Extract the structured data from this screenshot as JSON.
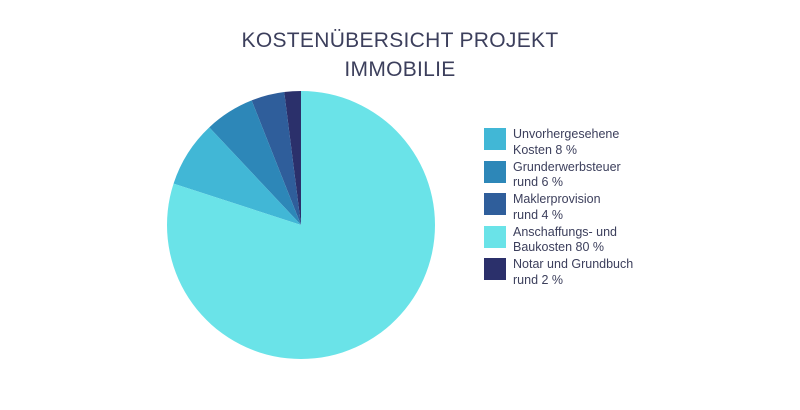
{
  "chart_data": {
    "type": "pie",
    "title_lines": [
      "KOSTENÜBERSICHT PROJEKT",
      "IMMOBILIE"
    ],
    "start_angle_deg": 0,
    "direction": "counterclockwise",
    "slices": [
      {
        "label": "Unvorhergesehene\nKosten 8 %",
        "value": 8,
        "color": "#41b7d6"
      },
      {
        "label": "Grunderwerbsteuer\nrund 6 %",
        "value": 6,
        "color": "#2d87b8"
      },
      {
        "label": "Maklerprovision\nrund 4 %",
        "value": 4,
        "color": "#2f5e9b"
      },
      {
        "label": "Anschaffungs- und\nBaukosten 80 %",
        "value": 80,
        "color": "#6ae3e8"
      },
      {
        "label": "Notar und Grundbuch\nrund 2 %",
        "value": 2,
        "color": "#2b306b"
      }
    ],
    "pie_draw_order": [
      4,
      2,
      1,
      0,
      3
    ],
    "legend_position": "right"
  }
}
